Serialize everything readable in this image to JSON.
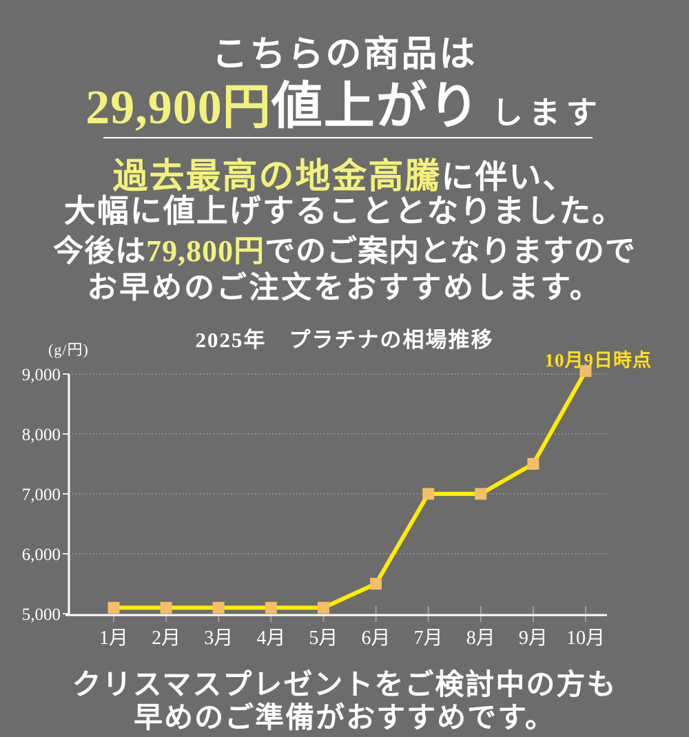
{
  "headline": {
    "line1": "こちらの商品は",
    "price": "29,900円",
    "rise": "値上がり",
    "suffix": "します"
  },
  "body": {
    "l1_em": "過去最高の地金高騰",
    "l1_rest": "に伴い、",
    "l2": "大幅に値上げすることとなりました。",
    "l3_pre": "今後は",
    "l3_price": "79,800円",
    "l3_post": "でのご案内となりますので",
    "l4": "お早めのご注文をおすすめします。"
  },
  "footer": {
    "line1": "クリスマスプレゼントをご検討中の方も",
    "line2": "早めのご準備がおすすめです。"
  },
  "colors": {
    "background": "#6c6c6c",
    "text_white": "#ffffff",
    "accent_pale_yellow": "#f3f17b",
    "accent_gold_yellow": "#ffe11a",
    "chart_line_yellow": "#ffec00",
    "chart_marker_orange": "#f4bd68"
  },
  "chart_data": {
    "type": "line",
    "title": "2025年　プラチナの相場推移",
    "unit_label": "(g/円)",
    "annotation": "10月9日時点",
    "categories": [
      "1月",
      "2月",
      "3月",
      "4月",
      "5月",
      "6月",
      "7月",
      "8月",
      "9月",
      "10月"
    ],
    "values": [
      5100,
      5100,
      5100,
      5100,
      5100,
      5500,
      7000,
      7000,
      7500,
      9050
    ],
    "ylim": [
      5000,
      9000
    ],
    "yticks": [
      5000,
      6000,
      7000,
      8000,
      9000
    ],
    "ytick_labels": [
      "5,000",
      "6,000",
      "7,000",
      "8,000",
      "9,000"
    ],
    "grid": "dotted horizontal gridlines at each 1000",
    "legend": "none",
    "line_color": "#ffec00",
    "marker_color": "#f4bd68",
    "marker_shape": "square"
  }
}
